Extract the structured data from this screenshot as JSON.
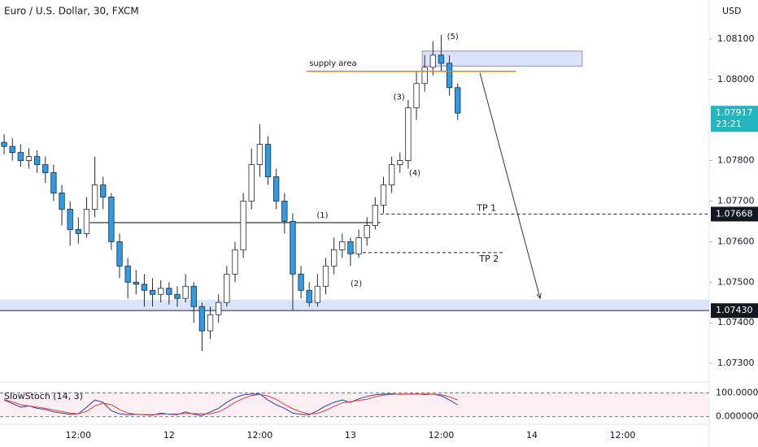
{
  "chart_data": [
    {
      "type": "candlestick",
      "title": "Euro / U.S. Dollar, 30, FXCM",
      "y_axis_label": "USD",
      "categories": [
        null,
        null,
        null,
        null,
        null,
        null,
        null,
        null,
        null,
        "12:00",
        null,
        null,
        null,
        null,
        null,
        null,
        null,
        null,
        null,
        null,
        "12",
        null,
        null,
        null,
        null,
        null,
        null,
        null,
        null,
        null,
        null,
        "12:00",
        null,
        null,
        null,
        null,
        null,
        null,
        null,
        null,
        null,
        null,
        "13",
        null,
        null,
        null,
        null,
        null,
        null,
        null,
        null,
        null,
        null,
        "12:00",
        null,
        null,
        null,
        null,
        null,
        null,
        null,
        null,
        null,
        null,
        "14",
        null,
        null,
        null,
        null,
        null,
        null,
        null,
        null,
        null,
        null,
        "12:00",
        null,
        null,
        null,
        null,
        null,
        null,
        null,
        null,
        null,
        null
      ],
      "open": [
        1.07845,
        1.07835,
        1.0782,
        1.078,
        1.0781,
        1.0779,
        1.0777,
        1.0772,
        1.0768,
        1.0763,
        1.0762,
        1.0768,
        1.0774,
        1.0771,
        1.076,
        1.0754,
        1.075,
        1.07495,
        1.0748,
        1.0747,
        1.07485,
        1.0747,
        1.0746,
        1.0749,
        1.0744,
        1.0738,
        1.0742,
        1.0745,
        1.0752,
        1.0758,
        1.077,
        1.0779,
        1.0784,
        1.0776,
        1.077,
        1.0765,
        1.0752,
        1.0748,
        1.0745,
        1.0749,
        1.0754,
        1.0758,
        1.076,
        1.0757,
        1.0761,
        1.0764,
        1.0769,
        1.0774,
        1.0779,
        1.078,
        1.0793,
        1.0799,
        1.0803,
        1.0806,
        1.0804,
        1.0798,
        null,
        null,
        null,
        null,
        null,
        null,
        null,
        null,
        null,
        null,
        null,
        null,
        null,
        null,
        null,
        null,
        null,
        null,
        null,
        null,
        null,
        null,
        null,
        null,
        null,
        null,
        null,
        null,
        null,
        null
      ],
      "high": [
        1.07865,
        1.07855,
        1.0784,
        1.0783,
        1.07825,
        1.0781,
        1.0779,
        1.0774,
        1.077,
        1.0766,
        1.0771,
        1.0781,
        1.0776,
        1.0772,
        1.0762,
        1.0756,
        1.0753,
        1.0752,
        1.0751,
        1.07505,
        1.075,
        1.0749,
        1.0752,
        1.075,
        1.0745,
        1.0744,
        1.0747,
        1.0754,
        1.076,
        1.0772,
        1.0783,
        1.0789,
        1.0786,
        1.0778,
        1.0772,
        1.0767,
        1.0754,
        1.075,
        1.0752,
        1.0756,
        1.0761,
        1.0762,
        1.0761,
        1.0763,
        1.0766,
        1.0771,
        1.0776,
        1.0781,
        1.0782,
        1.0795,
        1.0802,
        1.0806,
        1.08095,
        1.0811,
        1.0806,
        1.0799,
        null,
        null,
        null,
        null,
        null,
        null,
        null,
        null,
        null,
        null,
        null,
        null,
        null,
        null,
        null,
        null,
        null,
        null,
        null,
        null,
        null,
        null,
        null,
        null,
        null,
        null,
        null,
        null,
        null,
        null
      ],
      "low": [
        1.07815,
        1.078,
        1.07785,
        1.0778,
        1.0777,
        1.07745,
        1.077,
        1.0764,
        1.0759,
        1.07595,
        1.0761,
        1.0766,
        1.0768,
        1.0758,
        1.0751,
        1.0746,
        1.0747,
        1.0744,
        1.0744,
        1.0745,
        1.07445,
        1.0744,
        1.0745,
        1.074,
        1.0733,
        1.0736,
        1.074,
        1.0744,
        1.075,
        1.0756,
        1.0768,
        1.0776,
        1.0774,
        1.0768,
        1.0762,
        1.0743,
        1.0746,
        1.0744,
        1.0744,
        1.0747,
        1.0752,
        1.0756,
        1.0754,
        1.0756,
        1.0759,
        1.0763,
        1.0767,
        1.0772,
        1.0777,
        1.0778,
        1.079,
        1.0797,
        1.0801,
        1.0802,
        1.0796,
        1.079,
        null,
        null,
        null,
        null,
        null,
        null,
        null,
        null,
        null,
        null,
        null,
        null,
        null,
        null,
        null,
        null,
        null,
        null,
        null,
        null,
        null,
        null,
        null,
        null,
        null,
        null,
        null,
        null,
        null,
        null
      ],
      "close": [
        1.07835,
        1.0782,
        1.078,
        1.0781,
        1.0779,
        1.0777,
        1.0772,
        1.0768,
        1.0763,
        1.0762,
        1.0768,
        1.0774,
        1.0771,
        1.076,
        1.0754,
        1.075,
        1.07495,
        1.0748,
        1.0747,
        1.07485,
        1.0747,
        1.0746,
        1.0749,
        1.0744,
        1.0738,
        1.0742,
        1.0745,
        1.0752,
        1.0758,
        1.077,
        1.0779,
        1.0784,
        1.0776,
        1.077,
        1.0765,
        1.0752,
        1.0748,
        1.0745,
        1.0749,
        1.0754,
        1.0758,
        1.076,
        1.0757,
        1.0761,
        1.0764,
        1.0769,
        1.0774,
        1.0779,
        1.078,
        1.0793,
        1.0799,
        1.0803,
        1.0806,
        1.0804,
        1.0798,
        1.07917,
        null,
        null,
        null,
        null,
        null,
        null,
        null,
        null,
        null,
        null,
        null,
        null,
        null,
        null,
        null,
        null,
        null,
        null,
        null,
        null,
        null,
        null,
        null,
        null,
        null,
        null,
        null,
        null,
        null,
        null
      ],
      "up_color": "#ffffff",
      "down_color": "#2e9be6",
      "outline_color": "#1f2a38",
      "ylim": [
        1.07258,
        1.08196
      ],
      "yticks": [
        {
          "value": 1.081,
          "label": "1.08100"
        },
        {
          "value": 1.08,
          "label": "1.08000"
        },
        {
          "value": 1.078,
          "label": "1.07800"
        },
        {
          "value": 1.077,
          "label": "1.07700"
        },
        {
          "value": 1.076,
          "label": "1.07600"
        },
        {
          "value": 1.075,
          "label": "1.07500"
        },
        {
          "value": 1.074,
          "label": "1.07400"
        },
        {
          "value": 1.073,
          "label": "1.07300"
        }
      ],
      "last_price": {
        "value": 1.07917,
        "countdown": "23:21",
        "color": "#22b5bf"
      },
      "levels": [
        {
          "value": 1.07668,
          "label": "1.07668"
        },
        {
          "value": 1.0743,
          "label": "1.07430"
        }
      ],
      "support_zone": {
        "low": 1.0743,
        "high": 1.07457,
        "color": "#dbe5fa"
      },
      "supply_zone": {
        "label": "supply area",
        "low": 1.08033,
        "high": 1.0807,
        "start": 50.7,
        "end": 70.1,
        "color": "#dbe3fb",
        "line": 1.0802,
        "line_start": 36.7,
        "line_end": 62.1,
        "line_color": "#f57c00"
      },
      "neckline": {
        "value": 1.07647,
        "start": 10.4,
        "end": 45.6
      },
      "targets": [
        {
          "label": "TP 1",
          "value": 1.07668,
          "start": 45.6,
          "label_index": 58.5,
          "label_side": "above"
        },
        {
          "label": "TP 2",
          "value": 1.07573,
          "start": 42.1,
          "end": 60.5,
          "label_index": 58.8,
          "label_side": "below"
        }
      ],
      "waves": [
        {
          "label": "(1)",
          "index": 38.6,
          "price": 1.07665
        },
        {
          "label": "(2)",
          "index": 42.7,
          "price": 1.07497
        },
        {
          "label": "(3)",
          "index": 47.9,
          "price": 1.07956
        },
        {
          "label": "(4)",
          "index": 49.8,
          "price": 1.07769
        },
        {
          "label": "(5)",
          "index": 54.4,
          "price": 1.08106
        }
      ],
      "projection": {
        "start": 57.7,
        "start_price": 1.08016,
        "end": 65,
        "end_price": 1.0746
      }
    },
    {
      "type": "line",
      "title": "SlowStoch (14, 3)",
      "series": [
        {
          "color": "#2a3f9e",
          "values": [
            70,
            55,
            40,
            45,
            35,
            30,
            20,
            15,
            10,
            12,
            40,
            70,
            60,
            25,
            12,
            8,
            10,
            8,
            6,
            15,
            10,
            8,
            20,
            10,
            5,
            20,
            35,
            60,
            80,
            92,
            95,
            96,
            70,
            50,
            35,
            15,
            10,
            8,
            25,
            45,
            60,
            70,
            60,
            75,
            85,
            92,
            95,
            96,
            94,
            95,
            96,
            93,
            95,
            88,
            70,
            50
          ]
        },
        {
          "color": "#e53935",
          "values": [
            72,
            62,
            50,
            45,
            40,
            35,
            28,
            22,
            15,
            12,
            22,
            45,
            57,
            50,
            30,
            15,
            10,
            9,
            8,
            10,
            11,
            11,
            13,
            13,
            12,
            12,
            20,
            38,
            60,
            77,
            89,
            94,
            87,
            72,
            52,
            33,
            20,
            11,
            14,
            26,
            43,
            58,
            63,
            68,
            73,
            84,
            91,
            94,
            95,
            95,
            95,
            95,
            95,
            92,
            84,
            70
          ]
        }
      ],
      "ylim": [
        -32,
        146
      ],
      "yticks": [
        {
          "value": 100,
          "label": "100.000000"
        },
        {
          "value": 0,
          "label": "0.000000"
        }
      ],
      "band_color": "#fbeff3"
    }
  ]
}
